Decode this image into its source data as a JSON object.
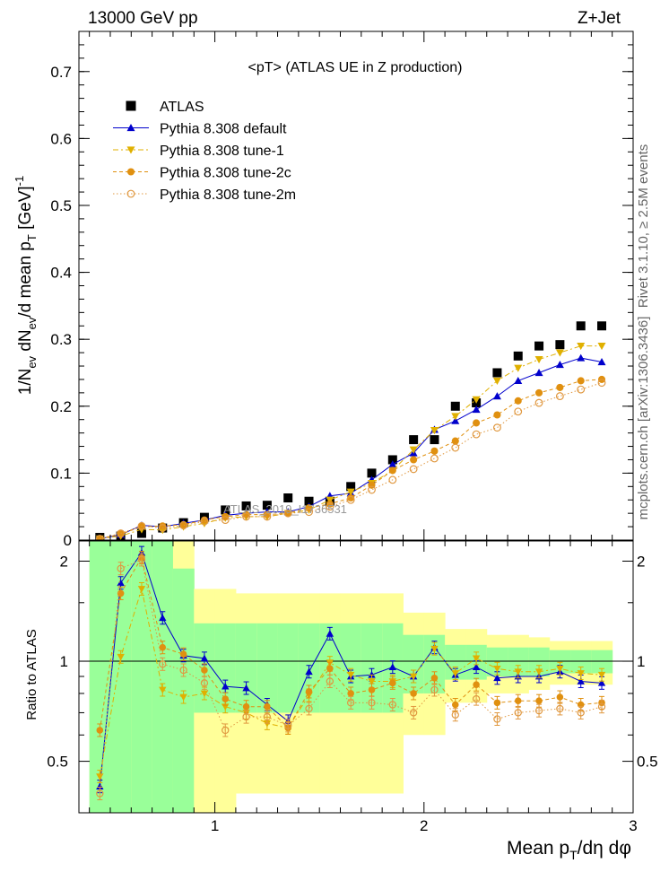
{
  "header": {
    "energy": "13000 GeV pp",
    "process": "Z+Jet"
  },
  "side_labels": {
    "rivet": "Rivet 3.1.10, ≥ 2.5M events",
    "mcplots": "mcplots.cern.ch [arXiv:1306.3436]"
  },
  "watermark": "ATLAS_2019_I1736531",
  "colors": {
    "atlas": "#000000",
    "default": "#0000cc",
    "tune1": "#e0b000",
    "tune2c": "#e09010",
    "tune2m": "#e09840",
    "band_inner": "#99ff99",
    "band_outer": "#ffff99"
  },
  "chart_data": [
    {
      "type": "scatter",
      "panel": "main",
      "title": "<pT>  (ATLAS UE in Z production)",
      "ylabel": "1/N_ev dN_ev/d mean p_T [GeV]^-1",
      "xlabel": "",
      "xlim": [
        0.35,
        3.0
      ],
      "ylim": [
        0,
        0.76
      ],
      "yticks": [
        {
          "v": 0,
          "label": "0"
        },
        {
          "v": 0.1,
          "label": "0.1"
        },
        {
          "v": 0.2,
          "label": "0.2"
        },
        {
          "v": 0.3,
          "label": "0.3"
        },
        {
          "v": 0.4,
          "label": "0.4"
        },
        {
          "v": 0.5,
          "label": "0.5"
        },
        {
          "v": 0.6,
          "label": "0.6"
        },
        {
          "v": 0.7,
          "label": "0.7"
        }
      ],
      "x": [
        0.45,
        0.55,
        0.65,
        0.75,
        0.85,
        0.95,
        1.05,
        1.15,
        1.25,
        1.35,
        1.45,
        1.55,
        1.65,
        1.75,
        1.85,
        1.95,
        2.05,
        2.15,
        2.25,
        2.35,
        2.45,
        2.55,
        2.65,
        2.75,
        2.85
      ],
      "legend": [
        "ATLAS",
        "Pythia 8.308 default",
        "Pythia 8.308 tune-1",
        "Pythia 8.308 tune-2c",
        "Pythia 8.308 tune-2m"
      ],
      "series": [
        {
          "name": "ATLAS",
          "key": "atlas",
          "marker": "square",
          "values": [
            0.004,
            0.006,
            0.01,
            0.018,
            0.026,
            0.034,
            0.045,
            0.051,
            0.052,
            0.063,
            0.058,
            0.058,
            0.08,
            0.1,
            0.12,
            0.15,
            0.15,
            0.2,
            0.205,
            0.25,
            0.275,
            0.29,
            0.292,
            0.32,
            0.32
          ]
        },
        {
          "name": "Pythia 8.308 default",
          "key": "default",
          "marker": "triangle-up",
          "line": "solid",
          "values": [
            0.002,
            0.008,
            0.022,
            0.02,
            0.025,
            0.03,
            0.037,
            0.04,
            0.042,
            0.042,
            0.05,
            0.066,
            0.07,
            0.09,
            0.113,
            0.13,
            0.165,
            0.178,
            0.195,
            0.215,
            0.238,
            0.25,
            0.262,
            0.272,
            0.266
          ]
        },
        {
          "name": "Pythia 8.308 tune-1",
          "key": "tune1",
          "marker": "triangle-down",
          "line": "dashdot",
          "values": [
            0.002,
            0.006,
            0.016,
            0.015,
            0.02,
            0.025,
            0.033,
            0.035,
            0.035,
            0.04,
            0.045,
            0.06,
            0.072,
            0.085,
            0.104,
            0.135,
            0.164,
            0.185,
            0.21,
            0.238,
            0.257,
            0.27,
            0.28,
            0.29,
            0.29
          ]
        },
        {
          "name": "Pythia 8.308 tune-2c",
          "key": "tune2c",
          "marker": "circle",
          "line": "dashed",
          "values": [
            0.002,
            0.009,
            0.02,
            0.021,
            0.023,
            0.03,
            0.035,
            0.038,
            0.038,
            0.04,
            0.048,
            0.054,
            0.063,
            0.082,
            0.104,
            0.12,
            0.133,
            0.148,
            0.175,
            0.187,
            0.208,
            0.22,
            0.228,
            0.238,
            0.24
          ]
        },
        {
          "name": "Pythia 8.308 tune-2m",
          "key": "tune2m",
          "marker": "open-circle",
          "line": "dotted",
          "values": [
            0.002,
            0.01,
            0.021,
            0.018,
            0.022,
            0.028,
            0.03,
            0.035,
            0.035,
            0.04,
            0.042,
            0.05,
            0.06,
            0.075,
            0.09,
            0.106,
            0.122,
            0.138,
            0.158,
            0.168,
            0.192,
            0.205,
            0.215,
            0.225,
            0.235
          ]
        }
      ]
    },
    {
      "type": "line",
      "panel": "ratio",
      "xlabel": "Mean p_T/dη dφ",
      "ylabel": "Ratio to ATLAS",
      "xlim": [
        0.35,
        3.0
      ],
      "ylim": [
        0.35,
        2.3
      ],
      "yticks": [
        {
          "v": 0.5,
          "label": "0.5"
        },
        {
          "v": 1,
          "label": "1"
        },
        {
          "v": 2,
          "label": "2"
        }
      ],
      "xticks": [
        {
          "v": 1,
          "label": "1"
        },
        {
          "v": 2,
          "label": "2"
        },
        {
          "v": 3,
          "label": "3"
        }
      ],
      "x": [
        0.45,
        0.55,
        0.65,
        0.75,
        0.85,
        0.95,
        1.05,
        1.15,
        1.25,
        1.35,
        1.45,
        1.55,
        1.65,
        1.75,
        1.85,
        1.95,
        2.05,
        2.15,
        2.25,
        2.35,
        2.45,
        2.55,
        2.65,
        2.75,
        2.85
      ],
      "bands": {
        "inner": [
          [
            0.3,
            2.3
          ],
          [
            0.3,
            2.3
          ],
          [
            0.3,
            2.3
          ],
          [
            0.3,
            2.3
          ],
          [
            0.3,
            1.9
          ],
          [
            0.7,
            1.3
          ],
          [
            0.7,
            1.3
          ],
          [
            0.7,
            1.3
          ],
          [
            0.7,
            1.3
          ],
          [
            0.7,
            1.3
          ],
          [
            0.7,
            1.3
          ],
          [
            0.7,
            1.3
          ],
          [
            0.7,
            1.3
          ],
          [
            0.7,
            1.3
          ],
          [
            0.7,
            1.3
          ],
          [
            0.8,
            1.2
          ],
          [
            0.8,
            1.2
          ],
          [
            0.88,
            1.12
          ],
          [
            0.88,
            1.12
          ],
          [
            0.9,
            1.1
          ],
          [
            0.9,
            1.1
          ],
          [
            0.9,
            1.1
          ],
          [
            0.92,
            1.08
          ],
          [
            0.92,
            1.08
          ],
          [
            0.92,
            1.08
          ]
        ],
        "outer": [
          [
            0.3,
            2.3
          ],
          [
            0.3,
            2.3
          ],
          [
            0.3,
            2.3
          ],
          [
            0.3,
            2.3
          ],
          [
            0.3,
            2.3
          ],
          [
            0.35,
            1.65
          ],
          [
            0.35,
            1.65
          ],
          [
            0.4,
            1.6
          ],
          [
            0.4,
            1.6
          ],
          [
            0.4,
            1.6
          ],
          [
            0.4,
            1.6
          ],
          [
            0.4,
            1.6
          ],
          [
            0.4,
            1.6
          ],
          [
            0.4,
            1.6
          ],
          [
            0.4,
            1.6
          ],
          [
            0.6,
            1.4
          ],
          [
            0.6,
            1.4
          ],
          [
            0.75,
            1.25
          ],
          [
            0.75,
            1.25
          ],
          [
            0.8,
            1.2
          ],
          [
            0.8,
            1.2
          ],
          [
            0.82,
            1.18
          ],
          [
            0.85,
            1.15
          ],
          [
            0.85,
            1.15
          ],
          [
            0.85,
            1.15
          ]
        ]
      },
      "series": [
        {
          "name": "Pythia 8.308 default",
          "key": "default",
          "marker": "triangle-up",
          "line": "solid",
          "values": [
            0.42,
            1.72,
            2.12,
            1.35,
            1.04,
            1.02,
            0.84,
            0.83,
            0.74,
            0.66,
            0.93,
            1.21,
            0.9,
            0.91,
            0.96,
            0.9,
            1.1,
            0.91,
            0.96,
            0.89,
            0.9,
            0.9,
            0.93,
            0.87,
            0.86
          ]
        },
        {
          "name": "Pythia 8.308 tune-1",
          "key": "tune1",
          "marker": "triangle-down",
          "line": "dashdot",
          "values": [
            0.45,
            1.03,
            1.65,
            0.82,
            0.78,
            0.8,
            0.73,
            0.7,
            0.65,
            0.63,
            0.79,
            0.99,
            0.91,
            0.87,
            0.87,
            0.9,
            1.09,
            0.92,
            1.02,
            0.95,
            0.93,
            0.93,
            0.95,
            0.92,
            0.91
          ]
        },
        {
          "name": "Pythia 8.308 tune-2c",
          "key": "tune2c",
          "marker": "circle",
          "line": "dashed",
          "values": [
            0.62,
            1.6,
            2.05,
            1.1,
            1.05,
            0.94,
            0.77,
            0.73,
            0.73,
            0.63,
            0.81,
            0.95,
            0.8,
            0.82,
            0.86,
            0.8,
            0.89,
            0.74,
            0.85,
            0.75,
            0.76,
            0.76,
            0.78,
            0.74,
            0.75
          ]
        },
        {
          "name": "Pythia 8.308 tune-2m",
          "key": "tune2m",
          "marker": "open-circle",
          "line": "dotted",
          "values": [
            0.4,
            1.9,
            2.02,
            0.98,
            0.94,
            0.86,
            0.62,
            0.68,
            0.68,
            0.64,
            0.72,
            0.87,
            0.75,
            0.75,
            0.74,
            0.7,
            0.82,
            0.69,
            0.77,
            0.67,
            0.7,
            0.71,
            0.72,
            0.7,
            0.73
          ]
        }
      ]
    }
  ]
}
